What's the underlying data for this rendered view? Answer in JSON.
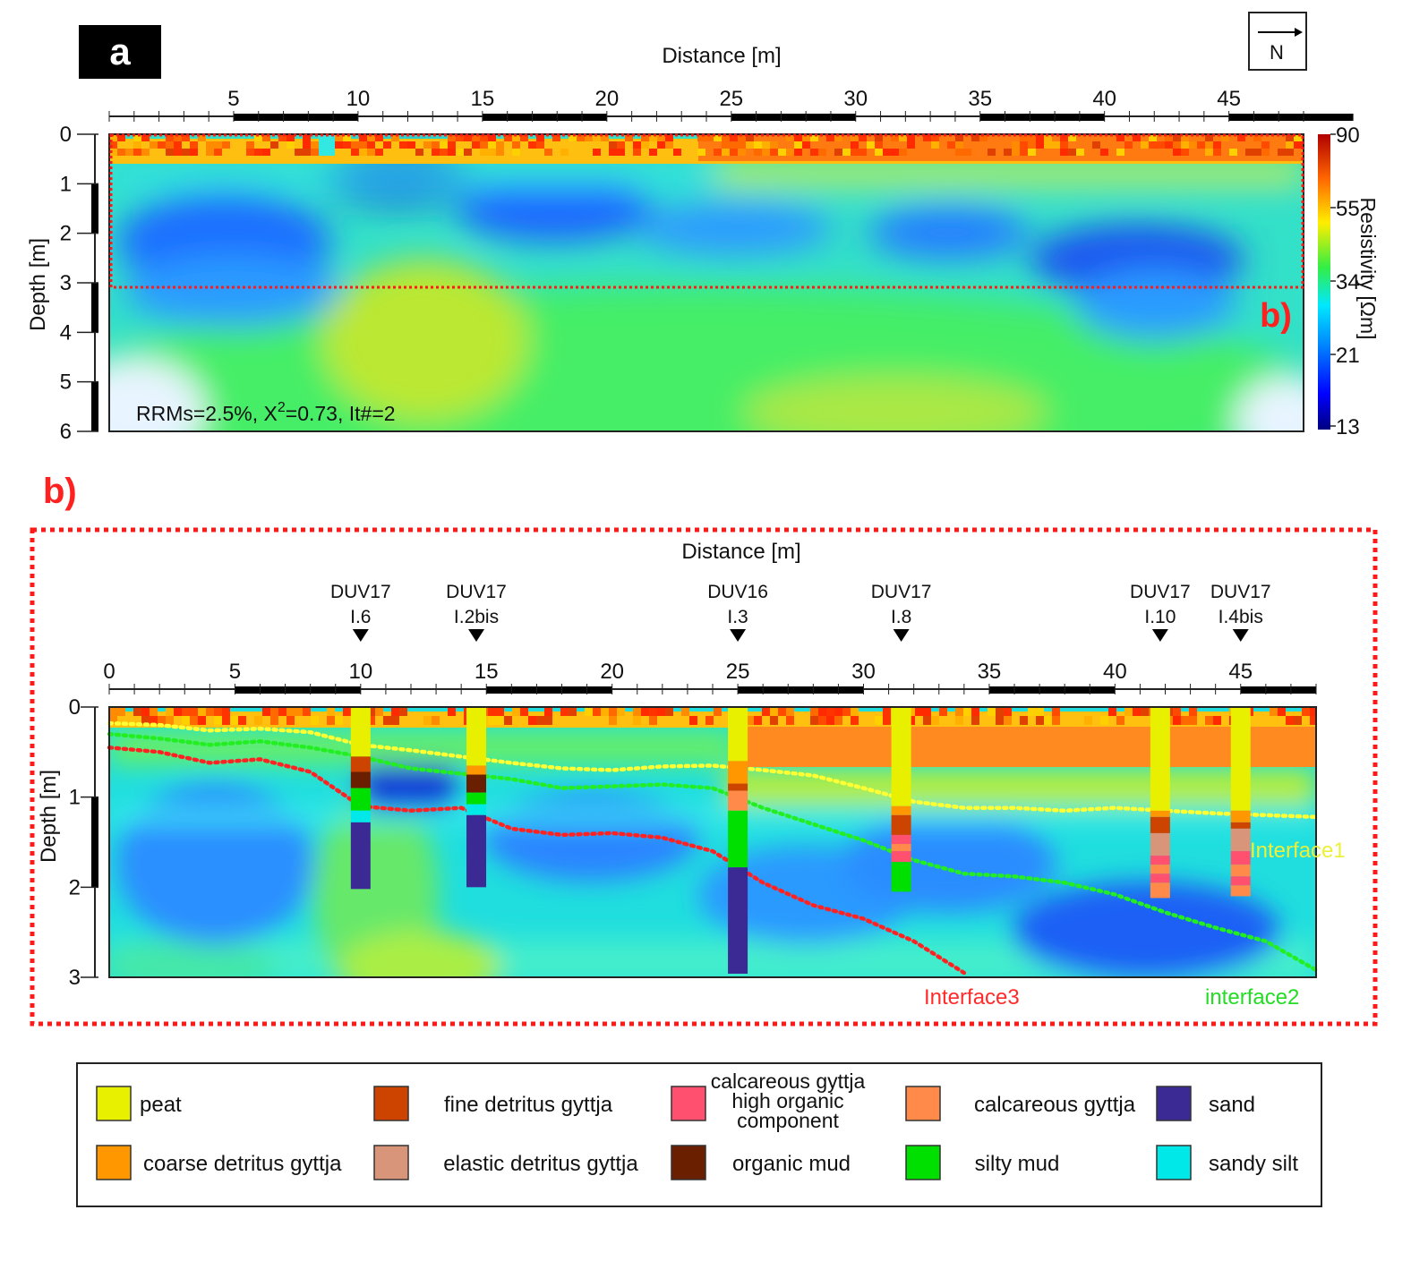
{
  "panel_a": {
    "label": "a",
    "north_label": "N",
    "rrms_prefix": "RRMs=2.5%, X",
    "rrms_sup": "2",
    "rrms_suffix": "=0.73, It#=2",
    "inset_label": "b)"
  },
  "panel_b": {
    "label": "b)",
    "interface_labels": [
      "Interface1",
      "interface2",
      "Interface3"
    ]
  },
  "colorbar": {
    "title": "Resistivity [Ωm]",
    "ticks": [
      "90",
      "55",
      "34",
      "21",
      "13"
    ]
  },
  "legend": {
    "items": [
      {
        "label": "peat",
        "color": "#e8f000"
      },
      {
        "label": "fine detritus gyttja",
        "color": "#cc4400"
      },
      {
        "label": "calcareous gyttja high organic component",
        "lines": [
          "calcareous gyttja",
          "high organic",
          "component"
        ],
        "color": "#ff5070"
      },
      {
        "label": "calcareous gyttja",
        "color": "#ff8a4a"
      },
      {
        "label": "sand",
        "color": "#3c2a94"
      },
      {
        "label": "coarse detritus gyttja",
        "color": "#ff9800"
      },
      {
        "label": "elastic detritus gyttja",
        "color": "#d8957a"
      },
      {
        "label": "organic mud",
        "color": "#6a2000"
      },
      {
        "label": "silty mud",
        "color": "#00e000"
      },
      {
        "label": "sandy silt",
        "color": "#00e8e8"
      }
    ]
  },
  "chart_data": [
    {
      "type": "heatmap",
      "panel": "a",
      "xlabel": "Distance [m]",
      "ylabel": "Depth [m]",
      "xlim": [
        0,
        48
      ],
      "ylim": [
        0,
        6
      ],
      "x_ticks": [
        "5",
        "10",
        "15",
        "20",
        "25",
        "30",
        "35",
        "40",
        "45"
      ],
      "y_ticks": [
        "0",
        "1",
        "2",
        "3",
        "4",
        "5",
        "6"
      ],
      "colorbar_range": [
        13,
        90
      ],
      "annotation": "RRMs=2.5%, X2=0.73, It#=2",
      "highlight_box": {
        "x_range": [
          0,
          48
        ],
        "depth_range": [
          0,
          3
        ],
        "label": "b)"
      }
    },
    {
      "type": "heatmap",
      "panel": "b",
      "xlabel": "Distance [m]",
      "ylabel": "Depth [m]",
      "xlim": [
        0,
        48
      ],
      "ylim": [
        0,
        3
      ],
      "x_ticks": [
        "0",
        "5",
        "10",
        "15",
        "20",
        "25",
        "30",
        "35",
        "40",
        "45"
      ],
      "y_ticks": [
        "0",
        "1",
        "2",
        "3"
      ],
      "boreholes": [
        {
          "name": "DUV17",
          "id": "I.6",
          "x": 10,
          "layers": [
            {
              "top": 0,
              "bottom": 0.55,
              "material": "peat"
            },
            {
              "top": 0.55,
              "bottom": 0.72,
              "material": "fine detritus gyttja"
            },
            {
              "top": 0.72,
              "bottom": 0.9,
              "material": "organic mud"
            },
            {
              "top": 0.9,
              "bottom": 1.15,
              "material": "silty mud"
            },
            {
              "top": 1.15,
              "bottom": 1.28,
              "material": "sandy silt"
            },
            {
              "top": 1.28,
              "bottom": 2.02,
              "material": "sand"
            }
          ]
        },
        {
          "name": "DUV17",
          "id": "I.2bis",
          "x": 14.6,
          "layers": [
            {
              "top": 0,
              "bottom": 0.65,
              "material": "peat"
            },
            {
              "top": 0.65,
              "bottom": 0.75,
              "material": "coarse detritus gyttja"
            },
            {
              "top": 0.75,
              "bottom": 0.95,
              "material": "organic mud"
            },
            {
              "top": 0.95,
              "bottom": 1.08,
              "material": "silty mud"
            },
            {
              "top": 1.08,
              "bottom": 1.2,
              "material": "sandy silt"
            },
            {
              "top": 1.2,
              "bottom": 2.0,
              "material": "sand"
            }
          ]
        },
        {
          "name": "DUV16",
          "id": "I.3",
          "x": 25,
          "layers": [
            {
              "top": 0,
              "bottom": 0.6,
              "material": "peat"
            },
            {
              "top": 0.6,
              "bottom": 0.85,
              "material": "coarse detritus gyttja"
            },
            {
              "top": 0.85,
              "bottom": 0.93,
              "material": "fine detritus gyttja"
            },
            {
              "top": 0.93,
              "bottom": 1.15,
              "material": "calcareous gyttja"
            },
            {
              "top": 1.15,
              "bottom": 1.78,
              "material": "silty mud"
            },
            {
              "top": 1.78,
              "bottom": 2.96,
              "material": "sand"
            }
          ]
        },
        {
          "name": "DUV17",
          "id": "I.8",
          "x": 31.5,
          "layers": [
            {
              "top": 0,
              "bottom": 1.1,
              "material": "peat"
            },
            {
              "top": 1.1,
              "bottom": 1.2,
              "material": "coarse detritus gyttja"
            },
            {
              "top": 1.2,
              "bottom": 1.42,
              "material": "fine detritus gyttja"
            },
            {
              "top": 1.42,
              "bottom": 1.52,
              "material": "calcareous gyttja high organic component"
            },
            {
              "top": 1.52,
              "bottom": 1.6,
              "material": "calcareous gyttja"
            },
            {
              "top": 1.6,
              "bottom": 1.72,
              "material": "calcareous gyttja high organic component"
            },
            {
              "top": 1.72,
              "bottom": 2.05,
              "material": "silty mud"
            }
          ]
        },
        {
          "name": "DUV17",
          "id": "I.10",
          "x": 41.8,
          "layers": [
            {
              "top": 0,
              "bottom": 1.15,
              "material": "peat"
            },
            {
              "top": 1.15,
              "bottom": 1.22,
              "material": "coarse detritus gyttja"
            },
            {
              "top": 1.22,
              "bottom": 1.4,
              "material": "fine detritus gyttja"
            },
            {
              "top": 1.4,
              "bottom": 1.65,
              "material": "elastic detritus gyttja"
            },
            {
              "top": 1.65,
              "bottom": 1.75,
              "material": "calcareous gyttja high organic component"
            },
            {
              "top": 1.75,
              "bottom": 1.85,
              "material": "calcareous gyttja"
            },
            {
              "top": 1.85,
              "bottom": 1.95,
              "material": "calcareous gyttja high organic component"
            },
            {
              "top": 1.95,
              "bottom": 2.12,
              "material": "calcareous gyttja"
            }
          ]
        },
        {
          "name": "DUV17",
          "id": "I.4bis",
          "x": 45,
          "layers": [
            {
              "top": 0,
              "bottom": 1.15,
              "material": "peat"
            },
            {
              "top": 1.15,
              "bottom": 1.28,
              "material": "coarse detritus gyttja"
            },
            {
              "top": 1.28,
              "bottom": 1.35,
              "material": "fine detritus gyttja"
            },
            {
              "top": 1.35,
              "bottom": 1.6,
              "material": "elastic detritus gyttja"
            },
            {
              "top": 1.6,
              "bottom": 1.75,
              "material": "calcareous gyttja high organic component"
            },
            {
              "top": 1.75,
              "bottom": 1.88,
              "material": "calcareous gyttja"
            },
            {
              "top": 1.88,
              "bottom": 1.98,
              "material": "calcareous gyttja high organic component"
            },
            {
              "top": 1.98,
              "bottom": 2.1,
              "material": "calcareous gyttja"
            }
          ]
        }
      ],
      "interfaces": [
        {
          "name": "Interface1",
          "color": "#ffff33",
          "points": [
            [
              0,
              0.18
            ],
            [
              2,
              0.2
            ],
            [
              4,
              0.26
            ],
            [
              6,
              0.24
            ],
            [
              8,
              0.28
            ],
            [
              10,
              0.42
            ],
            [
              12,
              0.48
            ],
            [
              14,
              0.55
            ],
            [
              16,
              0.62
            ],
            [
              18,
              0.68
            ],
            [
              20,
              0.7
            ],
            [
              22,
              0.66
            ],
            [
              24,
              0.65
            ],
            [
              26,
              0.7
            ],
            [
              28,
              0.76
            ],
            [
              30,
              0.9
            ],
            [
              32,
              1.05
            ],
            [
              34,
              1.12
            ],
            [
              36,
              1.12
            ],
            [
              38,
              1.15
            ],
            [
              40,
              1.12
            ],
            [
              42,
              1.15
            ],
            [
              44,
              1.18
            ],
            [
              46,
              1.2
            ],
            [
              48,
              1.22
            ]
          ]
        },
        {
          "name": "interface2",
          "color": "#22ee22",
          "points": [
            [
              0,
              0.3
            ],
            [
              2,
              0.35
            ],
            [
              4,
              0.42
            ],
            [
              6,
              0.38
            ],
            [
              8,
              0.45
            ],
            [
              10,
              0.55
            ],
            [
              12,
              0.68
            ],
            [
              14,
              0.74
            ],
            [
              16,
              0.8
            ],
            [
              18,
              0.9
            ],
            [
              20,
              0.88
            ],
            [
              22,
              0.86
            ],
            [
              24,
              0.9
            ],
            [
              26,
              1.12
            ],
            [
              28,
              1.3
            ],
            [
              30,
              1.48
            ],
            [
              32,
              1.7
            ],
            [
              34,
              1.85
            ],
            [
              36,
              1.88
            ],
            [
              38,
              1.95
            ],
            [
              40,
              2.08
            ],
            [
              42,
              2.28
            ],
            [
              44,
              2.45
            ],
            [
              46,
              2.6
            ],
            [
              48,
              2.92
            ]
          ]
        },
        {
          "name": "Interface3",
          "color": "#ff2222",
          "points": [
            [
              0,
              0.45
            ],
            [
              2,
              0.5
            ],
            [
              4,
              0.62
            ],
            [
              6,
              0.58
            ],
            [
              8,
              0.72
            ],
            [
              10,
              1.1
            ],
            [
              12,
              1.15
            ],
            [
              14,
              1.12
            ],
            [
              16,
              1.35
            ],
            [
              18,
              1.42
            ],
            [
              20,
              1.4
            ],
            [
              22,
              1.45
            ],
            [
              24,
              1.6
            ],
            [
              26,
              1.95
            ],
            [
              28,
              2.2
            ],
            [
              30,
              2.35
            ],
            [
              32,
              2.6
            ],
            [
              34,
              2.95
            ]
          ]
        }
      ]
    }
  ]
}
